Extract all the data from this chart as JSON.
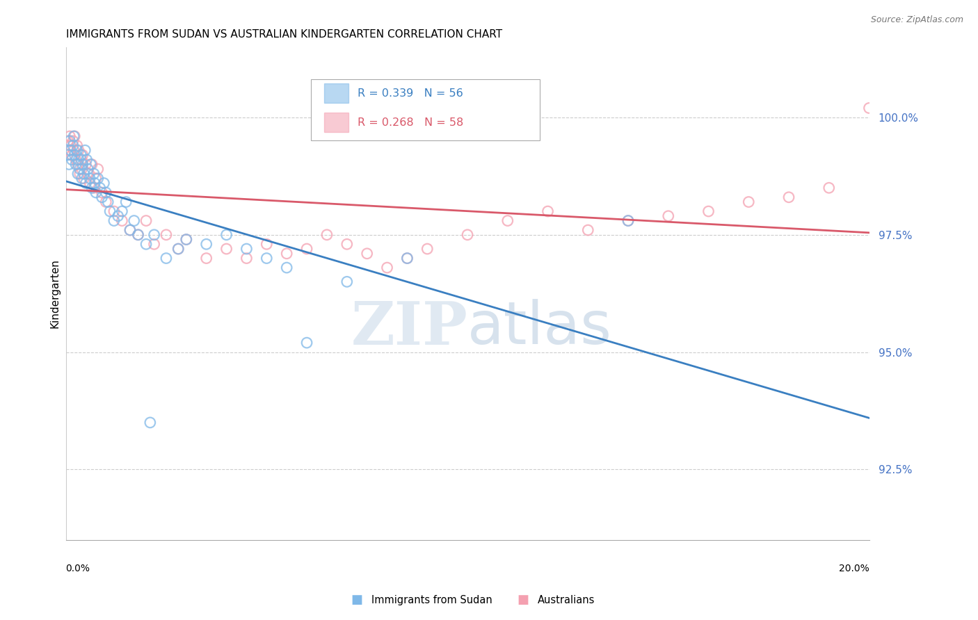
{
  "title": "IMMIGRANTS FROM SUDAN VS AUSTRALIAN KINDERGARTEN CORRELATION CHART",
  "source": "Source: ZipAtlas.com",
  "ylabel": "Kindergarten",
  "ytick_labels": [
    "92.5%",
    "95.0%",
    "97.5%",
    "100.0%"
  ],
  "ytick_values": [
    92.5,
    95.0,
    97.5,
    100.0
  ],
  "xlim": [
    0.0,
    20.0
  ],
  "ylim": [
    91.0,
    101.5
  ],
  "legend1_label": "Immigrants from Sudan",
  "legend2_label": "Australians",
  "blue_color": "#7fb8e8",
  "pink_color": "#f4a0b0",
  "blue_line_color": "#3a7fc1",
  "pink_line_color": "#d9596a",
  "R_blue": 0.339,
  "N_blue": 56,
  "R_pink": 0.268,
  "N_pink": 58,
  "blue_x": [
    0.05,
    0.08,
    0.1,
    0.12,
    0.15,
    0.18,
    0.2,
    0.22,
    0.25,
    0.28,
    0.3,
    0.32,
    0.35,
    0.38,
    0.4,
    0.42,
    0.45,
    0.48,
    0.5,
    0.52,
    0.55,
    0.6,
    0.62,
    0.65,
    0.7,
    0.72,
    0.75,
    0.8,
    0.85,
    0.9,
    0.95,
    1.0,
    1.05,
    1.1,
    1.2,
    1.3,
    1.4,
    1.5,
    1.6,
    1.7,
    1.8,
    2.0,
    2.2,
    2.5,
    2.8,
    3.0,
    3.5,
    4.0,
    4.5,
    5.0,
    5.5,
    6.0,
    7.0,
    8.5,
    14.0,
    2.1
  ],
  "blue_y": [
    99.2,
    99.0,
    99.5,
    99.3,
    99.1,
    99.4,
    99.6,
    99.2,
    99.0,
    99.3,
    98.8,
    99.1,
    98.9,
    99.2,
    98.7,
    99.0,
    98.8,
    99.3,
    98.6,
    99.1,
    98.9,
    98.7,
    99.0,
    98.5,
    98.8,
    98.6,
    98.4,
    98.7,
    98.5,
    98.3,
    98.6,
    98.4,
    98.2,
    98.0,
    97.8,
    97.9,
    98.0,
    98.2,
    97.6,
    97.8,
    97.5,
    97.3,
    97.5,
    97.0,
    97.2,
    97.4,
    97.3,
    97.5,
    97.2,
    97.0,
    96.8,
    95.2,
    96.5,
    97.0,
    97.8,
    93.5
  ],
  "pink_x": [
    0.05,
    0.08,
    0.1,
    0.12,
    0.15,
    0.18,
    0.2,
    0.22,
    0.25,
    0.28,
    0.3,
    0.32,
    0.35,
    0.38,
    0.4,
    0.42,
    0.45,
    0.5,
    0.55,
    0.6,
    0.65,
    0.7,
    0.75,
    0.8,
    0.9,
    1.0,
    1.2,
    1.4,
    1.6,
    1.8,
    2.0,
    2.2,
    2.5,
    2.8,
    3.0,
    3.5,
    4.0,
    4.5,
    5.0,
    5.5,
    6.0,
    6.5,
    7.0,
    7.5,
    8.0,
    8.5,
    9.0,
    10.0,
    11.0,
    12.0,
    13.0,
    14.0,
    15.0,
    16.0,
    17.0,
    18.0,
    19.0,
    20.0
  ],
  "pink_y": [
    99.5,
    99.3,
    99.6,
    99.4,
    99.2,
    99.5,
    99.3,
    99.6,
    99.1,
    99.4,
    99.0,
    99.3,
    98.8,
    99.1,
    98.9,
    99.2,
    98.7,
    99.0,
    98.8,
    98.6,
    99.0,
    98.5,
    98.7,
    98.9,
    98.4,
    98.2,
    98.0,
    97.8,
    97.6,
    97.5,
    97.8,
    97.3,
    97.5,
    97.2,
    97.4,
    97.0,
    97.2,
    97.0,
    97.3,
    97.1,
    97.2,
    97.5,
    97.3,
    97.1,
    96.8,
    97.0,
    97.2,
    97.5,
    97.8,
    98.0,
    97.6,
    97.8,
    97.9,
    98.0,
    98.2,
    98.3,
    98.5,
    100.2
  ]
}
